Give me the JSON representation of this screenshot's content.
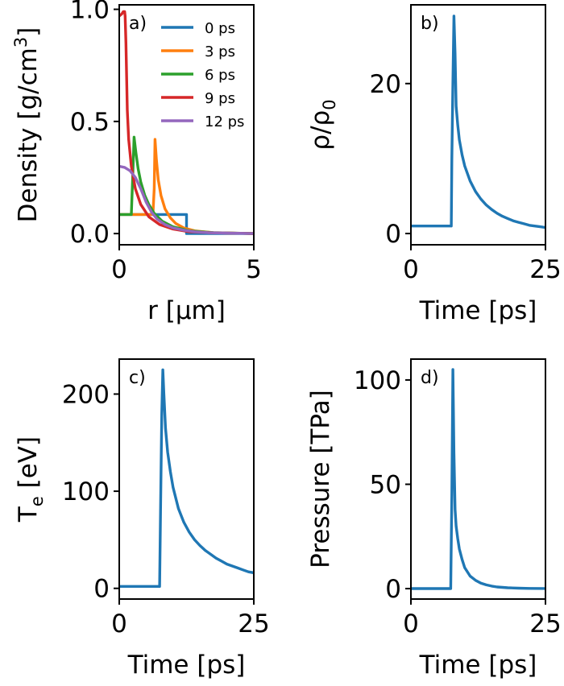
{
  "chart_data": [
    {
      "type": "line",
      "panel_label": "a)",
      "xlabel": "r [μm]",
      "ylabel": "Density [g/cm",
      "ylabel_sup": "3",
      "ylabel_end": "]",
      "xlim": [
        0,
        5
      ],
      "ylim": [
        -0.05,
        1.02
      ],
      "xticks": [
        0,
        5
      ],
      "xtick_labels": [
        "0",
        "5"
      ],
      "yticks": [
        0.0,
        0.5,
        1.0
      ],
      "ytick_labels": [
        "0.0",
        "0.5",
        "1.0"
      ],
      "legend_position": "top-right",
      "series": [
        {
          "name": "0 ps",
          "color": "#1f77b4",
          "x": [
            0,
            2.5,
            2.5,
            5
          ],
          "y": [
            0.085,
            0.085,
            0.0,
            0.0
          ]
        },
        {
          "name": "3 ps",
          "color": "#ff7f0e",
          "x": [
            0,
            1.25,
            1.3,
            1.33,
            1.38,
            1.45,
            1.55,
            1.7,
            1.9,
            2.1,
            2.4,
            2.8,
            3.5,
            5
          ],
          "y": [
            0.085,
            0.085,
            0.2,
            0.42,
            0.33,
            0.24,
            0.17,
            0.11,
            0.07,
            0.045,
            0.025,
            0.012,
            0.004,
            0.0
          ]
        },
        {
          "name": "6 ps",
          "color": "#2ca02c",
          "x": [
            0,
            0.45,
            0.5,
            0.55,
            0.62,
            0.7,
            0.8,
            0.95,
            1.1,
            1.3,
            1.6,
            2.0,
            2.6,
            3.5,
            5
          ],
          "y": [
            0.085,
            0.085,
            0.25,
            0.43,
            0.36,
            0.29,
            0.23,
            0.17,
            0.13,
            0.09,
            0.055,
            0.03,
            0.012,
            0.004,
            0.0
          ]
        },
        {
          "name": "9 ps",
          "color": "#d62728",
          "x": [
            0,
            0.05,
            0.1,
            0.15,
            0.2,
            0.22,
            0.25,
            0.3,
            0.35,
            0.45,
            0.6,
            0.8,
            1.1,
            1.5,
            2.0,
            2.6,
            3.5,
            5
          ],
          "y": [
            0.97,
            0.975,
            0.98,
            0.99,
            0.99,
            0.97,
            0.85,
            0.55,
            0.42,
            0.3,
            0.2,
            0.13,
            0.075,
            0.04,
            0.02,
            0.008,
            0.003,
            0.0
          ]
        },
        {
          "name": "12 ps",
          "color": "#9467bd",
          "x": [
            0,
            0.2,
            0.4,
            0.6,
            0.8,
            1.0,
            1.2,
            1.4,
            1.7,
            2.0,
            2.4,
            2.8,
            3.3,
            4.0,
            5
          ],
          "y": [
            0.3,
            0.295,
            0.28,
            0.25,
            0.2,
            0.14,
            0.095,
            0.065,
            0.04,
            0.025,
            0.015,
            0.008,
            0.004,
            0.002,
            0.0
          ]
        }
      ]
    },
    {
      "type": "line",
      "panel_label": "b)",
      "xlabel": "Time [ps]",
      "ylabel": "ρ/ρ",
      "ylabel_sub": "0",
      "xlim": [
        0,
        25
      ],
      "ylim": [
        -1.5,
        30.5
      ],
      "xticks": [
        0,
        25
      ],
      "xtick_labels": [
        "0",
        "25"
      ],
      "yticks": [
        0,
        20
      ],
      "ytick_labels": [
        "0",
        "20"
      ],
      "series": [
        {
          "name": "",
          "color": "#1f77b4",
          "x": [
            0,
            7.5,
            7.6,
            7.8,
            8.0,
            8.2,
            8.4,
            8.7,
            9.0,
            9.5,
            10,
            11,
            12,
            13,
            14,
            15,
            16,
            17,
            18,
            19,
            20,
            21,
            22,
            23,
            24,
            25
          ],
          "y": [
            1,
            1,
            10,
            20,
            29,
            24,
            17,
            14.5,
            12.5,
            10.5,
            9,
            7,
            5.6,
            4.6,
            3.8,
            3.2,
            2.7,
            2.3,
            2.0,
            1.7,
            1.5,
            1.3,
            1.1,
            1.0,
            0.9,
            0.8
          ]
        }
      ]
    },
    {
      "type": "line",
      "panel_label": "c)",
      "xlabel": "Time [ps]",
      "ylabel": "T",
      "ylabel_sub": "e",
      "ylabel_end": " [eV]",
      "xlim": [
        0,
        25
      ],
      "ylim": [
        -11,
        236
      ],
      "xticks": [
        0,
        25
      ],
      "xtick_labels": [
        "0",
        "25"
      ],
      "yticks": [
        0,
        100,
        200
      ],
      "ytick_labels": [
        "0",
        "100",
        "200"
      ],
      "series": [
        {
          "name": "",
          "color": "#1f77b4",
          "x": [
            0,
            7.5,
            7.7,
            7.9,
            8.1,
            8.3,
            8.6,
            9.0,
            9.5,
            10,
            11,
            12,
            13,
            14,
            15,
            16,
            17,
            18,
            19,
            20,
            21,
            22,
            23,
            24,
            25
          ],
          "y": [
            2,
            2,
            90,
            180,
            225,
            200,
            165,
            140,
            120,
            104,
            82,
            68,
            58,
            50,
            44,
            39,
            35,
            31,
            28,
            25,
            23,
            21,
            19,
            17,
            16
          ]
        }
      ]
    },
    {
      "type": "line",
      "panel_label": "d)",
      "xlabel": "Time [ps]",
      "ylabel": "Pressure [TPa]",
      "xlim": [
        0,
        25
      ],
      "ylim": [
        -5,
        110
      ],
      "xticks": [
        0,
        25
      ],
      "xtick_labels": [
        "0",
        "25"
      ],
      "yticks": [
        0,
        50,
        100
      ],
      "ytick_labels": [
        "0",
        "50",
        "100"
      ],
      "series": [
        {
          "name": "",
          "color": "#1f77b4",
          "x": [
            0,
            7.4,
            7.6,
            7.8,
            8.0,
            8.2,
            8.4,
            8.7,
            9.0,
            9.5,
            10,
            11,
            12,
            13,
            14,
            15,
            16,
            17,
            18,
            20,
            22,
            25
          ],
          "y": [
            0,
            0,
            45,
            105,
            65,
            38,
            30,
            24,
            19,
            14,
            10,
            6,
            4,
            2.6,
            1.8,
            1.2,
            0.8,
            0.6,
            0.4,
            0.2,
            0.1,
            0.05
          ]
        }
      ]
    }
  ]
}
